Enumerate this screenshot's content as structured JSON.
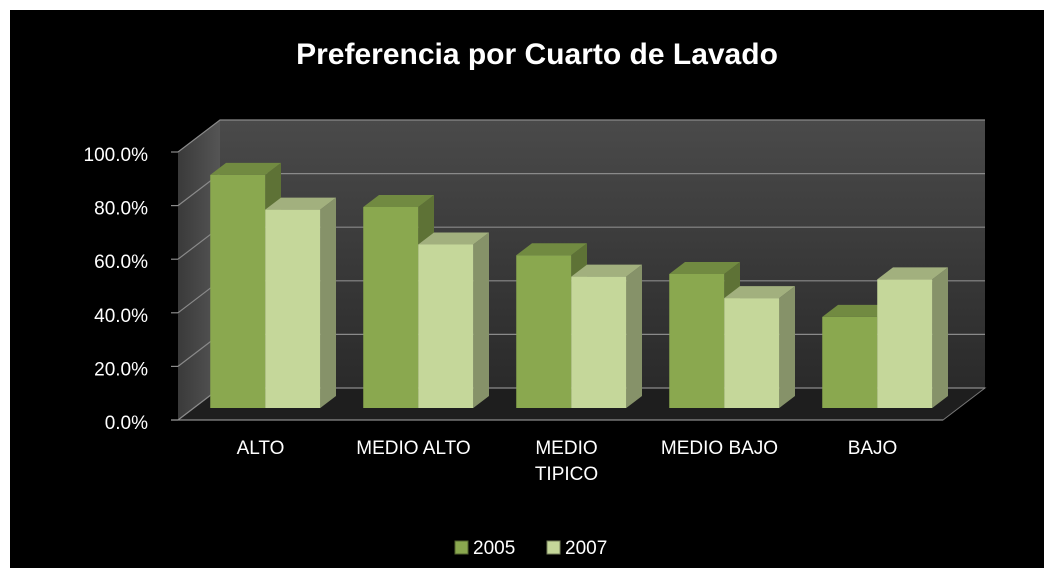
{
  "chart_data": {
    "type": "bar3d",
    "title": "Preferencia por Cuarto de Lavado",
    "categories": [
      "ALTO",
      "MEDIO ALTO",
      "MEDIO TIPICO",
      "MEDIO BAJO",
      "BAJO"
    ],
    "series": [
      {
        "name": "2005",
        "color": "#8aa84f",
        "values": [
          87,
          75,
          57,
          50,
          34
        ]
      },
      {
        "name": "2007",
        "color": "#c5d79a",
        "values": [
          74,
          61,
          49,
          41,
          48
        ]
      }
    ],
    "ylim": [
      0,
      100
    ],
    "yticks": [
      {
        "value": 0,
        "label": "0.0%"
      },
      {
        "value": 20,
        "label": "20.0%"
      },
      {
        "value": 40,
        "label": "40.0%"
      },
      {
        "value": 60,
        "label": "60.0%"
      },
      {
        "value": 80,
        "label": "80.0%"
      },
      {
        "value": 100,
        "label": "100.0%"
      }
    ],
    "grid": true,
    "legend": "bottom"
  }
}
